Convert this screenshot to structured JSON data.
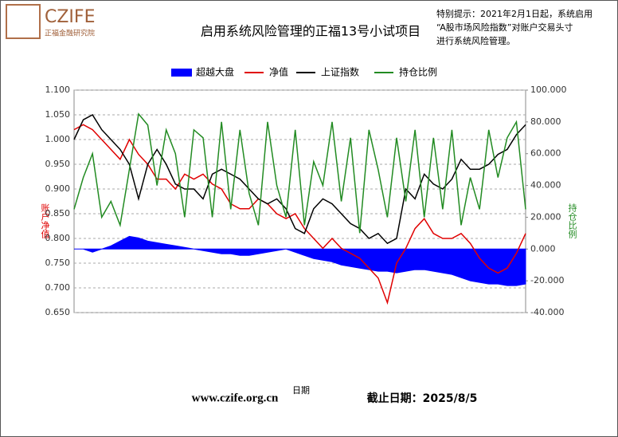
{
  "header": {
    "logo": "CZIFE",
    "org": "正福金融研究院",
    "notice": [
      "特别提示：2021年2月1日起，系统启用",
      "“A股市场风险指数”对账户交易头寸",
      "进行系统风险管理。"
    ]
  },
  "footer": {
    "website": "www.czife.org.cn",
    "cutoff": "截止日期：2025/8/5"
  },
  "chart_data": {
    "type": "line",
    "title": "启用系统风险管理的正福13号小试项目",
    "xlabel": "日期",
    "ylabel": "账户净值",
    "y2label": "持仓比例",
    "categories": [
      null,
      null,
      null,
      null,
      null,
      null,
      null,
      null,
      null,
      null,
      null,
      null,
      null,
      null,
      null,
      null,
      null,
      null,
      null,
      null,
      null,
      null,
      null,
      null,
      null,
      null,
      null,
      null,
      null,
      null,
      null,
      null,
      null,
      null,
      null,
      null,
      null,
      null,
      null,
      null,
      null,
      null,
      null,
      null,
      null,
      null,
      null,
      null,
      null,
      null
    ],
    "ylim": [
      0.65,
      1.1
    ],
    "yticks": [
      {
        "value": 0.65,
        "label": "0.650"
      },
      {
        "value": 0.7,
        "label": "0.700"
      },
      {
        "value": 0.75,
        "label": "0.750"
      },
      {
        "value": 0.8,
        "label": "0.800"
      },
      {
        "value": 0.85,
        "label": "0.850"
      },
      {
        "value": 0.9,
        "label": "0.900"
      },
      {
        "value": 0.95,
        "label": "0.950"
      },
      {
        "value": 1.0,
        "label": "1.000"
      },
      {
        "value": 1.05,
        "label": "1.050"
      },
      {
        "value": 1.1,
        "label": "1.100"
      }
    ],
    "y2lim": [
      -40,
      100
    ],
    "y2ticks": [
      {
        "value": -40,
        "label": "-40.000"
      },
      {
        "value": -20,
        "label": "-20.000"
      },
      {
        "value": 0,
        "label": "0.000"
      },
      {
        "value": 20,
        "label": "20.000"
      },
      {
        "value": 40,
        "label": "40.000"
      },
      {
        "value": 60,
        "label": "60.000"
      },
      {
        "value": 80,
        "label": "80.000"
      },
      {
        "value": 100,
        "label": "100.000"
      }
    ],
    "grid": true,
    "series": [
      {
        "name": "超越大盘",
        "color": "#0000ff",
        "style": "area",
        "axis": "y2",
        "values": [
          0,
          0,
          -2,
          0,
          2,
          5,
          8,
          7,
          5,
          4,
          3,
          2,
          1,
          0,
          -1,
          -2,
          -3,
          -3,
          -4,
          -4,
          -3,
          -2,
          -1,
          0,
          -2,
          -4,
          -6,
          -7,
          -8,
          -10,
          -11,
          -12,
          -13,
          -14,
          -14,
          -15,
          -14,
          -13,
          -13,
          -14,
          -15,
          -16,
          -18,
          -20,
          -21,
          -22,
          -22,
          -23,
          -23,
          -22
        ]
      },
      {
        "name": "净值",
        "color": "#e00000",
        "style": "line",
        "values": [
          1.02,
          1.03,
          1.02,
          1.0,
          0.98,
          0.96,
          1.0,
          0.97,
          0.95,
          0.92,
          0.92,
          0.9,
          0.93,
          0.92,
          0.93,
          0.91,
          0.9,
          0.87,
          0.86,
          0.86,
          0.88,
          0.87,
          0.85,
          0.84,
          0.85,
          0.82,
          0.8,
          0.78,
          0.8,
          0.78,
          0.77,
          0.76,
          0.74,
          0.72,
          0.67,
          0.75,
          0.78,
          0.82,
          0.84,
          0.81,
          0.8,
          0.8,
          0.81,
          0.79,
          0.76,
          0.74,
          0.73,
          0.74,
          0.77,
          0.81
        ]
      },
      {
        "name": "上证指数",
        "color": "#000000",
        "style": "line",
        "values": [
          1.0,
          1.04,
          1.05,
          1.02,
          1.0,
          0.98,
          0.95,
          0.88,
          0.95,
          0.98,
          0.95,
          0.91,
          0.9,
          0.9,
          0.88,
          0.93,
          0.94,
          0.93,
          0.92,
          0.9,
          0.88,
          0.87,
          0.88,
          0.86,
          0.82,
          0.81,
          0.86,
          0.88,
          0.87,
          0.85,
          0.83,
          0.82,
          0.8,
          0.81,
          0.79,
          0.8,
          0.9,
          0.88,
          0.93,
          0.91,
          0.9,
          0.92,
          0.96,
          0.94,
          0.94,
          0.95,
          0.97,
          0.98,
          1.01,
          1.03
        ]
      },
      {
        "name": "持仓比例",
        "color": "#228b22",
        "style": "line",
        "axis": "y2",
        "values": [
          25,
          45,
          60,
          20,
          30,
          15,
          50,
          85,
          78,
          40,
          75,
          60,
          20,
          75,
          70,
          20,
          80,
          25,
          75,
          35,
          15,
          80,
          40,
          20,
          75,
          15,
          55,
          40,
          80,
          30,
          70,
          10,
          75,
          50,
          20,
          70,
          30,
          75,
          20,
          70,
          25,
          75,
          15,
          45,
          25,
          75,
          45,
          70,
          80,
          25
        ]
      }
    ]
  }
}
